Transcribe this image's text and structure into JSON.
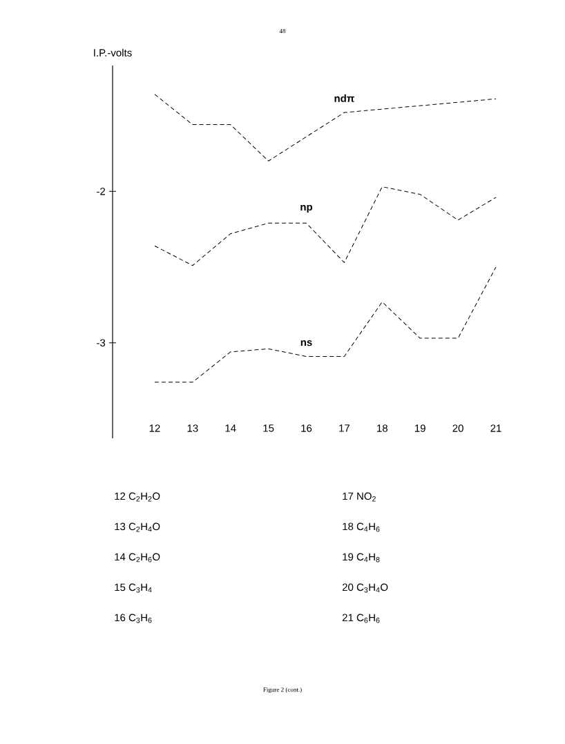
{
  "chart_data": {
    "type": "line",
    "ylabel": "I.P.-volts",
    "x": [
      12,
      13,
      14,
      15,
      16,
      17,
      18,
      19,
      20,
      21
    ],
    "xlim": [
      10.89,
      21
    ],
    "xticks": [
      12,
      13,
      14,
      15,
      16,
      17,
      18,
      19,
      20,
      21
    ],
    "ylim": [
      -3.63,
      -1.17
    ],
    "yticks": [
      -2,
      -3
    ],
    "series": [
      {
        "name": "ndπ",
        "color": "#000000",
        "x": [
          12,
          13,
          14,
          15,
          17,
          21
        ],
        "values": [
          -1.36,
          -1.56,
          -1.56,
          -1.8,
          -1.48,
          -1.39
        ]
      },
      {
        "name": "np",
        "color": "#000000",
        "values": [
          -2.36,
          -2.49,
          -2.28,
          -2.21,
          -2.21,
          -2.47,
          -1.97,
          -2.02,
          -2.19,
          -2.04
        ]
      },
      {
        "name": "ns",
        "color": "#000000",
        "values": [
          -3.26,
          -3.26,
          -3.06,
          -3.04,
          -3.09,
          -3.09,
          -2.73,
          -2.97,
          -2.97,
          -2.5
        ]
      }
    ],
    "line_style": "dashed",
    "marker": "none",
    "annotations": [
      "48",
      "12 C$_{2}$H$_{2}$O",
      "13 C$_{2}$H$_{4}$O",
      "14 C$_{2}$H$_{6}$O",
      "15 C$_{3}$H$_{4}$",
      "16 C$_{3}$H$_{6}$",
      "17 NO$_{2}$",
      "18 C$_{4}$H$_{6}$",
      "19 C$_{4}$H$_{8}$",
      "20 C$_{3}$H$_{4}$O",
      "21 C$_{6}$H$_{6}$",
      "Figure 2 (cont.)"
    ]
  }
}
